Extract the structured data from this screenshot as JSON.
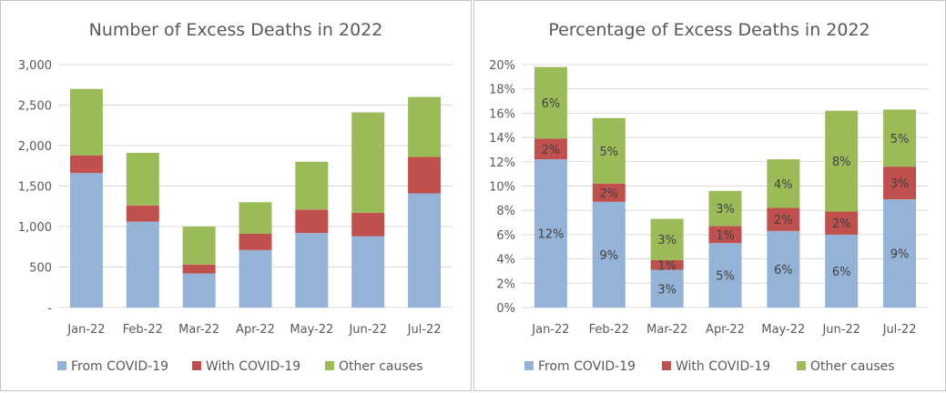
{
  "colors": {
    "from_covid": "#95b3d7",
    "with_covid": "#c0504d",
    "other": "#9bbb59",
    "grid": "#d9d9d9",
    "axis_text": "#595959"
  },
  "chart_data": [
    {
      "type": "bar",
      "stacked": true,
      "title": "Number of Excess Deaths in 2022",
      "categories": [
        "Jan-22",
        "Feb-22",
        "Mar-22",
        "Apr-22",
        "May-22",
        "Jun-22",
        "Jul-22"
      ],
      "series": [
        {
          "name": "From COVID-19",
          "values": [
            1660,
            1060,
            420,
            710,
            920,
            880,
            1410
          ]
        },
        {
          "name": "With COVID-19",
          "values": [
            220,
            200,
            110,
            200,
            290,
            290,
            450
          ]
        },
        {
          "name": "Other causes",
          "values": [
            820,
            650,
            470,
            390,
            590,
            1240,
            740
          ]
        }
      ],
      "ylim": [
        0,
        3000
      ],
      "yticks": [
        0,
        500,
        1000,
        1500,
        2000,
        2500,
        3000
      ],
      "ytick_labels": [
        "-",
        "500",
        "1,000",
        "1,500",
        "2,000",
        "2,500",
        "3,000"
      ],
      "grid": true,
      "legend_position": "bottom"
    },
    {
      "type": "bar",
      "stacked": true,
      "title": "Percentage of Excess Deaths in 2022",
      "categories": [
        "Jan-22",
        "Feb-22",
        "Mar-22",
        "Apr-22",
        "May-22",
        "Jun-22",
        "Jul-22"
      ],
      "series": [
        {
          "name": "From COVID-19",
          "values": [
            12.2,
            8.7,
            3.1,
            5.3,
            6.3,
            6.0,
            8.9
          ],
          "labels": [
            "12%",
            "9%",
            "3%",
            "5%",
            "6%",
            "6%",
            "9%"
          ]
        },
        {
          "name": "With COVID-19",
          "values": [
            1.7,
            1.5,
            0.8,
            1.4,
            1.9,
            1.9,
            2.7
          ],
          "labels": [
            "2%",
            "2%",
            "1%",
            "1%",
            "2%",
            "2%",
            "3%"
          ]
        },
        {
          "name": "Other causes",
          "values": [
            5.9,
            5.4,
            3.4,
            2.9,
            4.0,
            8.3,
            4.7
          ],
          "labels": [
            "6%",
            "5%",
            "3%",
            "3%",
            "4%",
            "8%",
            "5%"
          ]
        }
      ],
      "ylim": [
        0,
        20
      ],
      "yticks": [
        0,
        2,
        4,
        6,
        8,
        10,
        12,
        14,
        16,
        18,
        20
      ],
      "ytick_labels": [
        "0%",
        "2%",
        "4%",
        "6%",
        "8%",
        "10%",
        "12%",
        "14%",
        "16%",
        "18%",
        "20%"
      ],
      "grid": true,
      "legend_position": "bottom"
    }
  ]
}
